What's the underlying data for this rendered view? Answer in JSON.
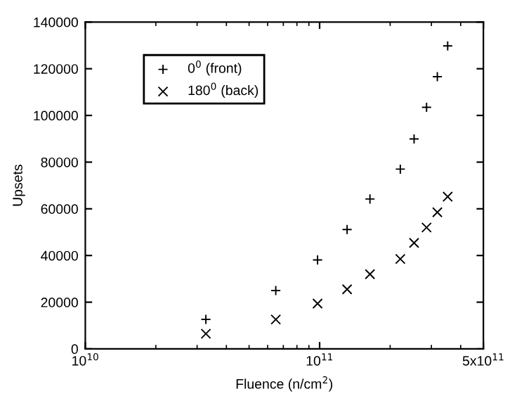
{
  "chart_data": {
    "type": "scatter",
    "xlabel": "Fluence (n/cm$^{2}$)",
    "ylabel": "Upsets",
    "log": "x",
    "x": [
      32700000000.0,
      65000000000.0,
      98000000000.0,
      131000000000.0,
      164000000000.0,
      221000000000.0,
      253000000000.0,
      286000000000.0,
      318000000000.0,
      352000000000.0
    ],
    "series": [
      {
        "name": "0$^{0}$ (front)",
        "color": "#000000",
        "marker": "plus",
        "values": [
          12600,
          25000,
          38100,
          51100,
          64200,
          77000,
          89900,
          103500,
          116600,
          129800
        ]
      },
      {
        "name": "180$^{0}$ (back)",
        "color": "#000000",
        "marker": "cross",
        "values": [
          6500,
          12600,
          19400,
          25500,
          32000,
          38500,
          45400,
          52000,
          58500,
          65200
        ]
      }
    ],
    "xlim": [
      10000000000.0,
      500000000000.0
    ],
    "xticks": [
      {
        "value": 10000000000.0,
        "label": "10$^{10}$"
      },
      {
        "value": 100000000000.0,
        "label": "10$^{11}$"
      },
      {
        "value": 500000000000.0,
        "label": "5x10$^{11}$"
      }
    ],
    "ylim": [
      0,
      140000
    ],
    "yticks": [
      0,
      20000,
      40000,
      60000,
      80000,
      100000,
      120000,
      140000
    ],
    "grid": false,
    "legend": "top left"
  }
}
